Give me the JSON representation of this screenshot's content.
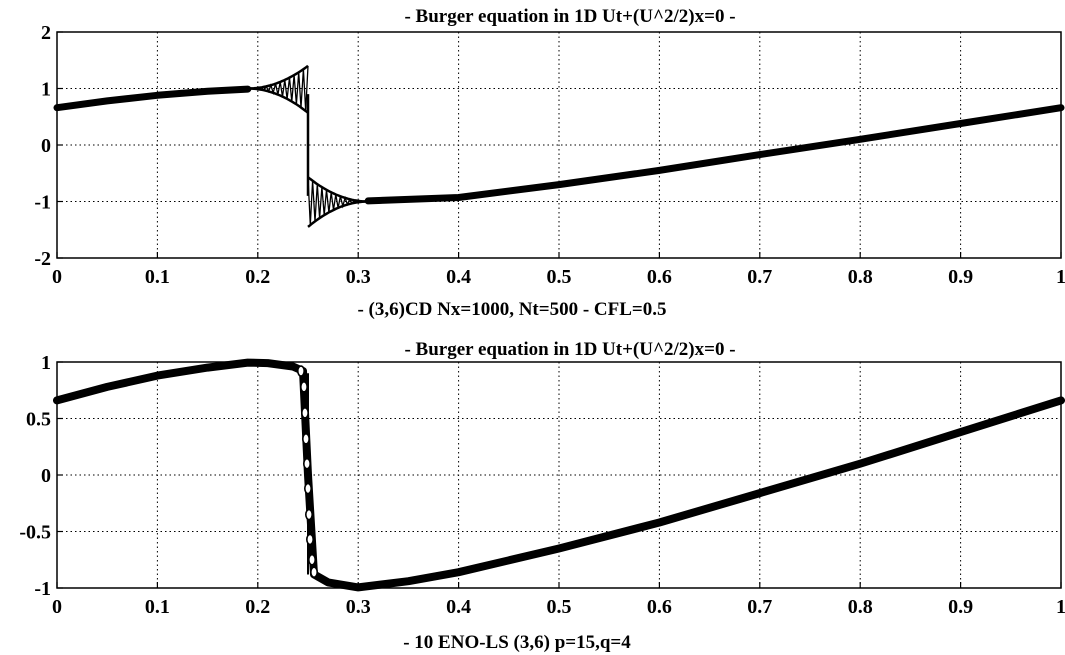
{
  "chart_data": [
    {
      "type": "line",
      "title": "- Burger equation in 1D Ut+(U^2/2)x=0  -",
      "xlabel": "- (3,6)CD Nx=1000, Nt=500 - CFL=0.5",
      "ylabel": "",
      "xlim": [
        0,
        1
      ],
      "ylim": [
        -2,
        2
      ],
      "xticks": [
        "0",
        "0.1",
        "0.2",
        "0.3",
        "0.4",
        "0.5",
        "0.6",
        "0.7",
        "0.8",
        "0.9",
        "1"
      ],
      "yticks": [
        "2",
        "1",
        "0",
        "-1",
        "-2"
      ],
      "grid": true,
      "series": [
        {
          "points": [
            [
              0,
              0.66
            ],
            [
              0.05,
              0.78
            ],
            [
              0.1,
              0.88
            ],
            [
              0.15,
              0.95
            ],
            [
              0.19,
              0.99
            ],
            [
              0.25,
              0.0
            ],
            [
              0.31,
              -0.99
            ],
            [
              0.4,
              -0.93
            ],
            [
              0.5,
              -0.7
            ],
            [
              0.6,
              -0.45
            ],
            [
              0.7,
              -0.17
            ],
            [
              0.8,
              0.1
            ],
            [
              0.9,
              0.38
            ],
            [
              1.0,
              0.66
            ]
          ]
        }
      ],
      "oscillation_bands": [
        {
          "x0": 0.19,
          "x1": 0.25,
          "u": 1.4,
          "l": 0.57
        },
        {
          "x0": 0.25,
          "x1": 0.31,
          "u": -0.57,
          "l": -1.45
        }
      ]
    },
    {
      "type": "line",
      "title": "- Burger equation in 1D Ut+(U^2/2)x=0  -",
      "xlabel": "- 10 ENO-LS (3,6) p=15,q=4",
      "ylabel": "",
      "xlim": [
        0,
        1
      ],
      "ylim": [
        -1,
        1
      ],
      "xticks": [
        "0",
        "0.1",
        "0.2",
        "0.3",
        "0.4",
        "0.5",
        "0.6",
        "0.7",
        "0.8",
        "0.9",
        "1"
      ],
      "yticks": [
        "1",
        "0.5",
        "0",
        "-0.5",
        "-1"
      ],
      "grid": true,
      "series": [
        {
          "points": [
            [
              0,
              0.66
            ],
            [
              0.05,
              0.78
            ],
            [
              0.1,
              0.88
            ],
            [
              0.15,
              0.95
            ],
            [
              0.19,
              0.995
            ],
            [
              0.21,
              0.99
            ],
            [
              0.235,
              0.96
            ],
            [
              0.245,
              0.92
            ],
            [
              0.25,
              0.0
            ],
            [
              0.256,
              -0.88
            ],
            [
              0.27,
              -0.95
            ],
            [
              0.3,
              -0.995
            ],
            [
              0.35,
              -0.94
            ],
            [
              0.4,
              -0.86
            ],
            [
              0.5,
              -0.65
            ],
            [
              0.6,
              -0.42
            ],
            [
              0.7,
              -0.16
            ],
            [
              0.8,
              0.1
            ],
            [
              0.9,
              0.38
            ],
            [
              1.0,
              0.66
            ]
          ]
        }
      ],
      "shock_markers": [
        {
          "x": 0.243,
          "y": 0.92
        },
        {
          "x": 0.246,
          "y": 0.78
        },
        {
          "x": 0.247,
          "y": 0.55
        },
        {
          "x": 0.248,
          "y": 0.32
        },
        {
          "x": 0.249,
          "y": 0.1
        },
        {
          "x": 0.25,
          "y": -0.12
        },
        {
          "x": 0.251,
          "y": -0.35
        },
        {
          "x": 0.252,
          "y": -0.57
        },
        {
          "x": 0.254,
          "y": -0.75
        },
        {
          "x": 0.256,
          "y": -0.86
        }
      ]
    }
  ]
}
